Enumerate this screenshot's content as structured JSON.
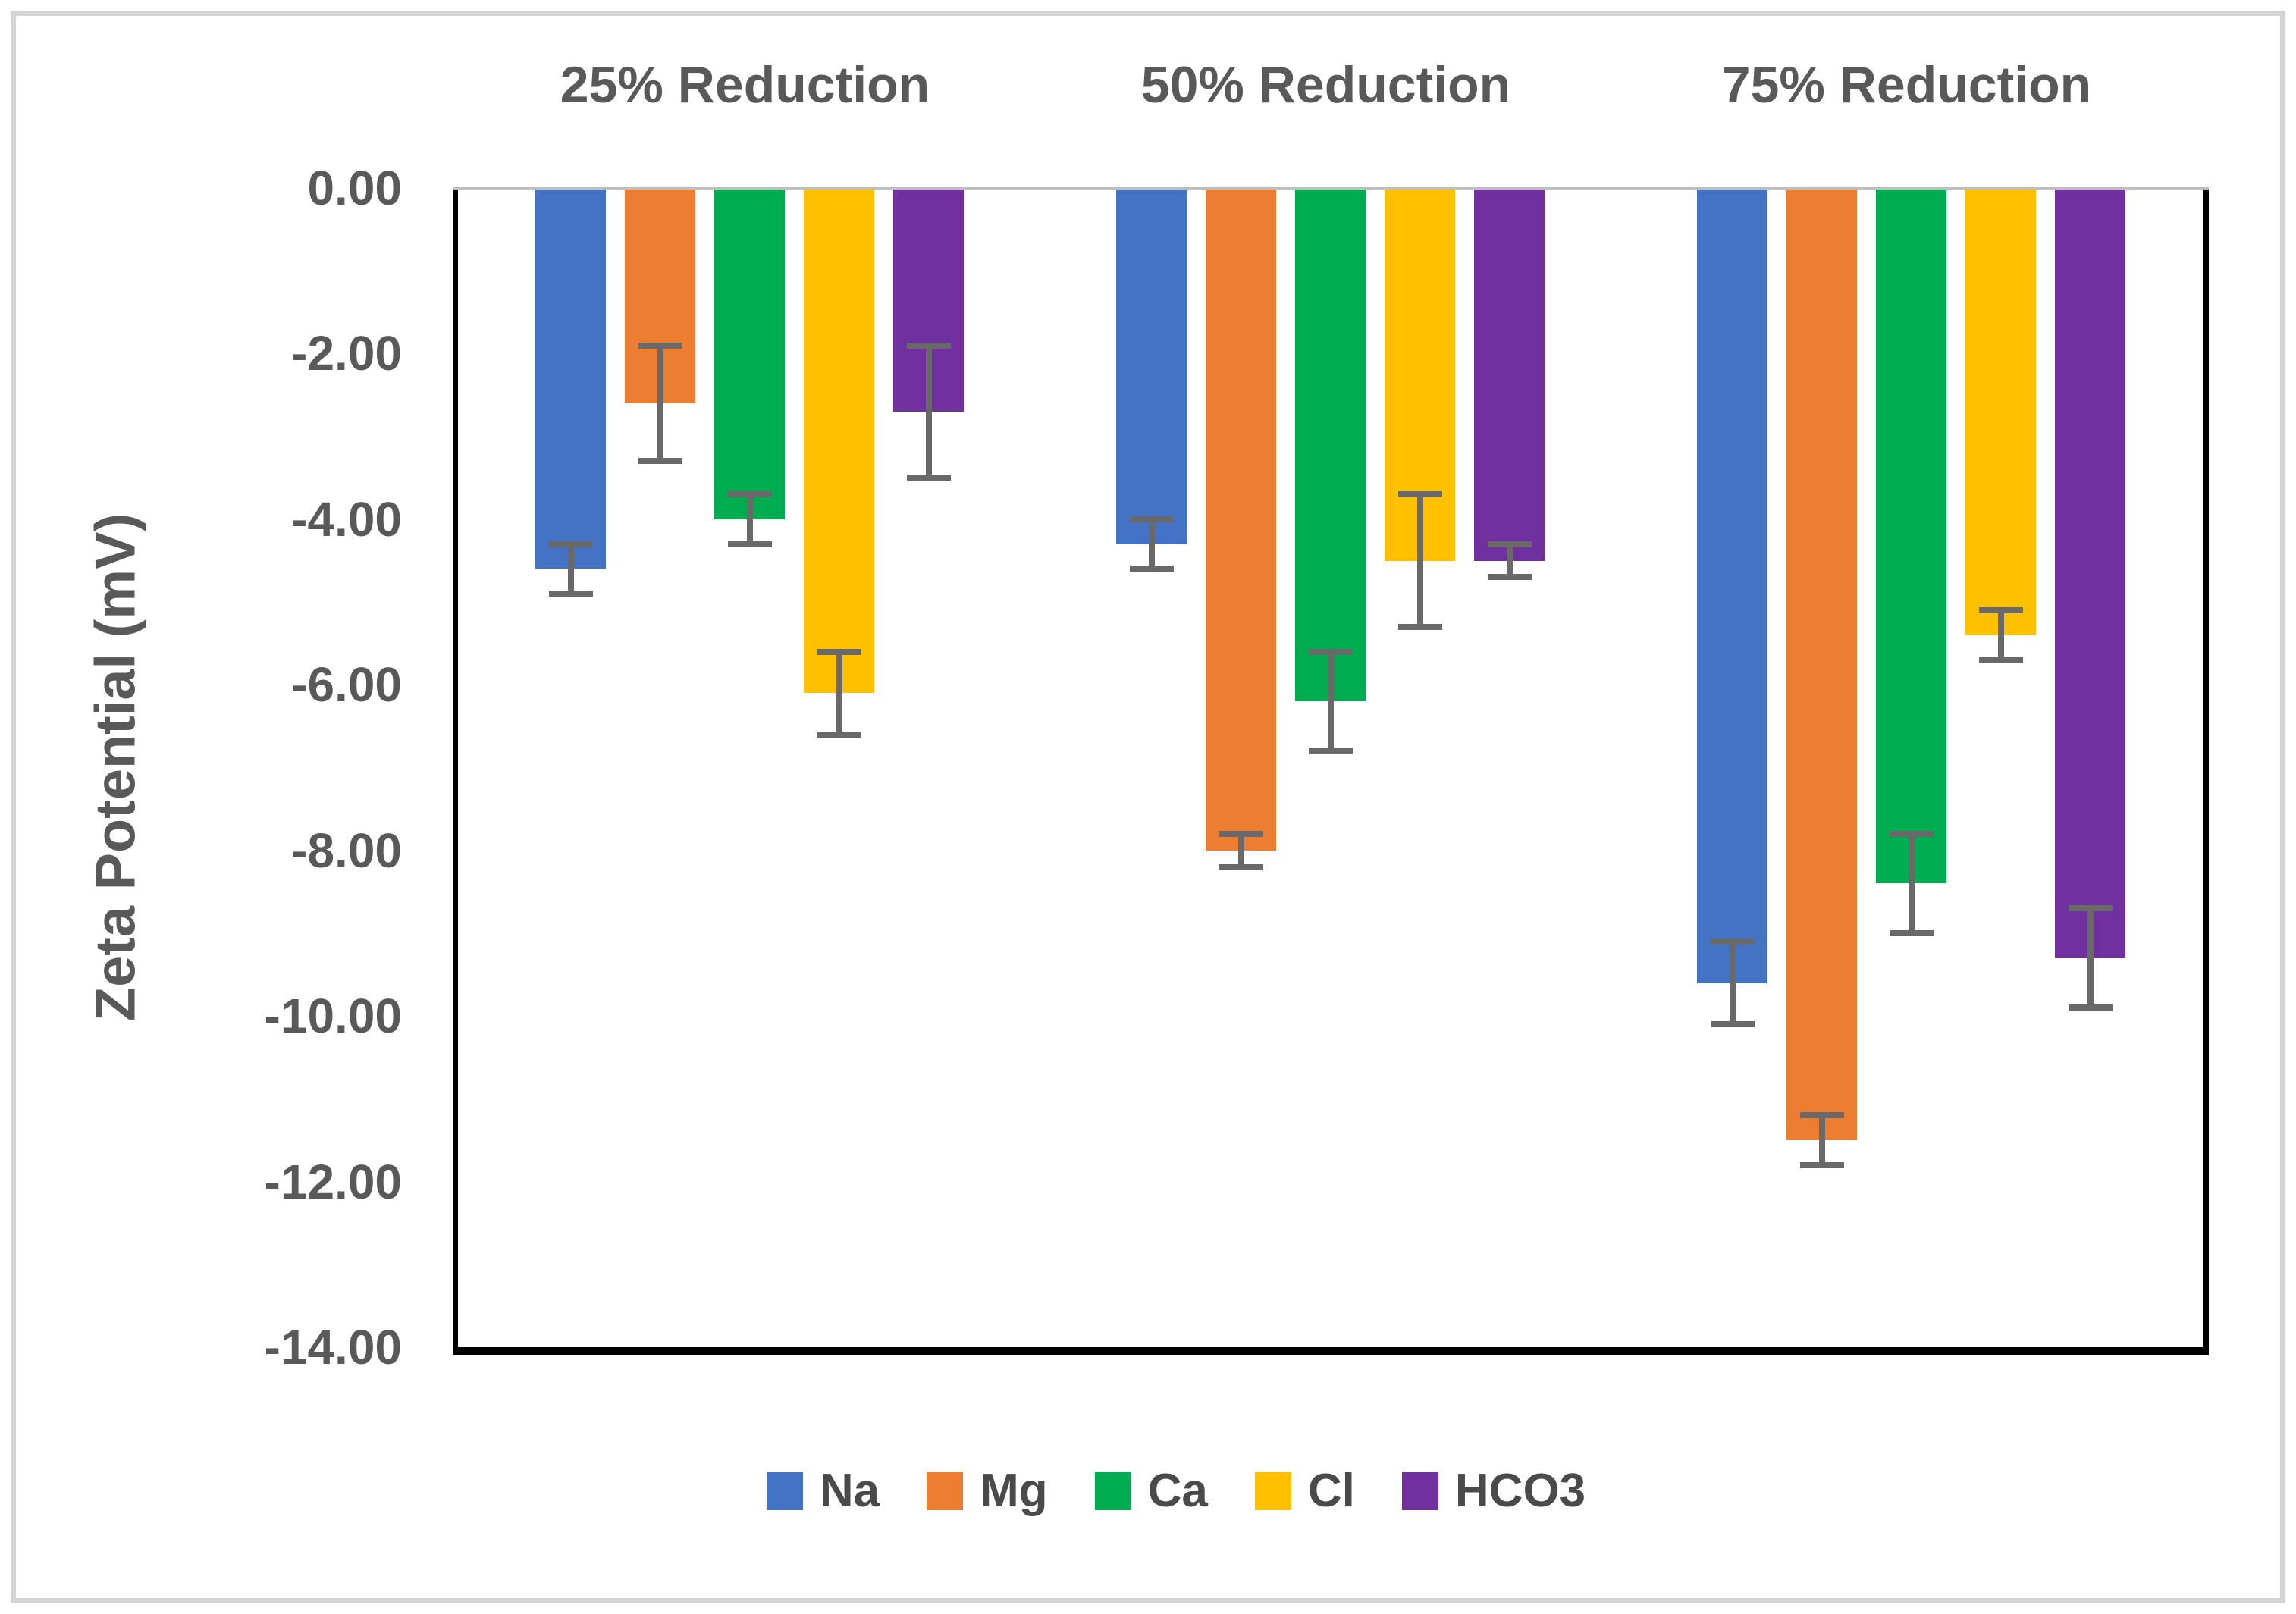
{
  "chart_data": {
    "type": "bar",
    "title": "",
    "ylabel": "Zeta Potential (mV)",
    "categories": [
      "25% Reduction",
      "50% Reduction",
      "75% Reduction"
    ],
    "series": [
      {
        "name": "Na",
        "color": "#4472C4",
        "values": [
          -4.6,
          -4.3,
          -9.6
        ],
        "errors": [
          0.3,
          0.3,
          0.5
        ]
      },
      {
        "name": "Mg",
        "color": "#ED7D31",
        "values": [
          -2.6,
          -8.0,
          -11.5
        ],
        "errors": [
          0.7,
          0.2,
          0.3
        ]
      },
      {
        "name": "Ca",
        "color": "#00AC50",
        "values": [
          -4.0,
          -6.2,
          -8.4
        ],
        "errors": [
          0.3,
          0.6,
          0.6
        ]
      },
      {
        "name": "Cl",
        "color": "#FFC000",
        "values": [
          -6.1,
          -4.5,
          -5.4
        ],
        "errors": [
          0.5,
          0.8,
          0.3
        ]
      },
      {
        "name": "HCO3",
        "color": "#7030A0",
        "values": [
          -2.7,
          -4.5,
          -9.3
        ],
        "errors": [
          0.8,
          0.2,
          0.6
        ]
      }
    ],
    "y_axis": {
      "min": -14,
      "max": 0,
      "step": 2,
      "tick_labels": [
        "0.00",
        "-2.00",
        "-4.00",
        "-6.00",
        "-8.00",
        "-10.00",
        "-12.00",
        "-14.00"
      ]
    },
    "legend_position": "bottom",
    "grid": false,
    "error_bars": true,
    "error_bar_color": "#696969",
    "axis_text_color": "#595959"
  }
}
